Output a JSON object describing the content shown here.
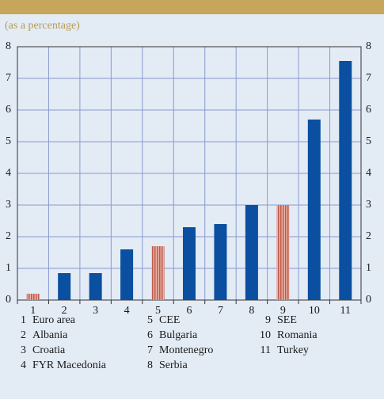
{
  "chart_data": {
    "type": "bar",
    "subtitle": "(as a percentage)",
    "categories": [
      "1",
      "2",
      "3",
      "4",
      "5",
      "6",
      "7",
      "8",
      "9",
      "10",
      "11"
    ],
    "values": [
      0.2,
      0.85,
      0.85,
      1.6,
      1.7,
      2.3,
      2.4,
      3.0,
      3.0,
      5.7,
      7.55
    ],
    "colors": [
      "#c9776a",
      "#0a4fa0",
      "#0a4fa0",
      "#0a4fa0",
      "#c9776a",
      "#0a4fa0",
      "#0a4fa0",
      "#0a4fa0",
      "#c9776a",
      "#0a4fa0",
      "#0a4fa0"
    ],
    "hatched": [
      true,
      false,
      false,
      false,
      true,
      false,
      false,
      false,
      true,
      false,
      false
    ],
    "legend": [
      "Euro area",
      "Albania",
      "Croatia",
      "FYR Macedonia",
      "CEE",
      "Bulgaria",
      "Montenegro",
      "Serbia",
      "SEE",
      "Romania",
      "Turkey"
    ],
    "ylim": [
      0,
      8
    ],
    "yticks": [
      0,
      1,
      2,
      3,
      4,
      5,
      6,
      7,
      8
    ],
    "grid": true,
    "right_axis": true
  }
}
